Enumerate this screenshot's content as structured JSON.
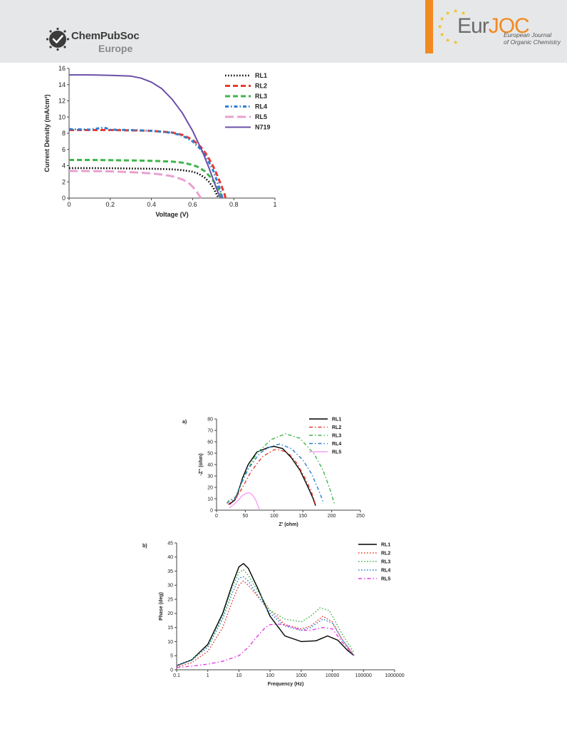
{
  "header": {
    "publisher_name": "ChemPubSoc",
    "publisher_sub": "Europe",
    "journal_prefix": "Eur",
    "journal_suffix": "JOC",
    "journal_full_line1": "European Journal",
    "journal_full_line2": "of Organic Chemistry",
    "icon": "chempubsoc-logo-icon"
  },
  "colors": {
    "header_band": "#e6e7e8",
    "accent_orange": "#f18a21",
    "RL1": "#000000",
    "RL2": "#e83a2f",
    "RL3": "#3fb54a",
    "RL4": "#2f7fd1",
    "RL5": "#e9a0cf",
    "N719": "#6b4fa8"
  },
  "chart_data": [
    {
      "type": "line",
      "title": "",
      "xlabel": "Voltage (V)",
      "ylabel": "Current Density (mA/cm²)",
      "xlim": [
        0,
        1
      ],
      "ylim": [
        0,
        16
      ],
      "xticks": [
        "0",
        "0.2",
        "0.4",
        "0.6",
        "0.8",
        "1"
      ],
      "yticks": [
        "0",
        "2",
        "4",
        "6",
        "8",
        "10",
        "12",
        "14",
        "16"
      ],
      "legend_position": "top-right",
      "grid": false,
      "series": [
        {
          "name": "RL1",
          "style": "dotted",
          "color": "#000000",
          "width": 2.6,
          "x": [
            0,
            0.1,
            0.2,
            0.3,
            0.4,
            0.5,
            0.55,
            0.6,
            0.63,
            0.66,
            0.68,
            0.7,
            0.71,
            0.72,
            0.725
          ],
          "y": [
            3.7,
            3.7,
            3.68,
            3.65,
            3.62,
            3.55,
            3.45,
            3.25,
            3.0,
            2.5,
            2.0,
            1.3,
            0.8,
            0.3,
            0
          ]
        },
        {
          "name": "RL2",
          "style": "dashed",
          "color": "#e83a2f",
          "width": 3,
          "x": [
            0,
            0.1,
            0.2,
            0.3,
            0.4,
            0.5,
            0.55,
            0.6,
            0.64,
            0.67,
            0.7,
            0.72,
            0.74,
            0.755,
            0.76
          ],
          "y": [
            8.4,
            8.4,
            8.4,
            8.35,
            8.3,
            8.1,
            7.8,
            7.2,
            6.3,
            5.3,
            3.9,
            2.8,
            1.5,
            0.5,
            0
          ]
        },
        {
          "name": "RL3",
          "style": "dashed",
          "color": "#3fb54a",
          "width": 3,
          "x": [
            0,
            0.1,
            0.2,
            0.3,
            0.4,
            0.5,
            0.55,
            0.6,
            0.63,
            0.66,
            0.69,
            0.71,
            0.73,
            0.745
          ],
          "y": [
            4.7,
            4.7,
            4.68,
            4.65,
            4.6,
            4.5,
            4.38,
            4.1,
            3.8,
            3.3,
            2.5,
            1.8,
            0.9,
            0
          ]
        },
        {
          "name": "RL4",
          "style": "dashdot",
          "color": "#2f7fd1",
          "width": 3,
          "x": [
            0,
            0.1,
            0.17,
            0.2,
            0.3,
            0.4,
            0.5,
            0.55,
            0.6,
            0.64,
            0.67,
            0.7,
            0.72,
            0.735,
            0.745
          ],
          "y": [
            8.5,
            8.45,
            8.7,
            8.45,
            8.4,
            8.3,
            8.05,
            7.7,
            7.0,
            6.0,
            4.9,
            3.4,
            2.0,
            0.9,
            0
          ]
        },
        {
          "name": "RL5",
          "style": "longdash",
          "color": "#e9a0cf",
          "width": 3,
          "x": [
            0,
            0.1,
            0.2,
            0.3,
            0.4,
            0.45,
            0.5,
            0.55,
            0.58,
            0.6,
            0.62,
            0.64
          ],
          "y": [
            3.35,
            3.33,
            3.3,
            3.2,
            3.05,
            2.9,
            2.7,
            2.3,
            1.9,
            1.4,
            0.8,
            0
          ]
        },
        {
          "name": "N719",
          "style": "solid",
          "color": "#6b4fa8",
          "width": 2,
          "x": [
            0,
            0.1,
            0.2,
            0.3,
            0.35,
            0.4,
            0.45,
            0.5,
            0.55,
            0.6,
            0.65,
            0.68,
            0.7,
            0.72,
            0.735
          ],
          "y": [
            15.2,
            15.2,
            15.15,
            15.05,
            14.8,
            14.3,
            13.5,
            12.2,
            10.5,
            8.3,
            5.6,
            3.7,
            2.3,
            0.9,
            0
          ]
        }
      ]
    },
    {
      "type": "line",
      "panel_label": "a)",
      "title": "",
      "xlabel": "Z' (ohm)",
      "ylabel": "-Z'' (ohm)",
      "xlim": [
        0,
        250
      ],
      "ylim": [
        0,
        80
      ],
      "xticks": [
        "0",
        "50",
        "100",
        "150",
        "200",
        "250"
      ],
      "yticks": [
        "0",
        "10",
        "20",
        "30",
        "40",
        "50",
        "60",
        "70",
        "80"
      ],
      "legend_position": "top-right",
      "grid": false,
      "series": [
        {
          "name": "RL1",
          "style": "solid",
          "color": "#000000",
          "x": [
            22,
            27,
            32,
            37,
            45,
            55,
            70,
            90,
            100,
            115,
            130,
            145,
            160,
            168,
            172
          ],
          "y": [
            5,
            7,
            9,
            15,
            28,
            40,
            51,
            55,
            56,
            54,
            46,
            35,
            19,
            10,
            4
          ]
        },
        {
          "name": "RL2",
          "style": "dashdot",
          "color": "#e83a2f",
          "x": [
            20,
            25,
            30,
            36,
            45,
            60,
            80,
            100,
            110,
            125,
            140,
            155,
            165,
            172
          ],
          "y": [
            5,
            7,
            9,
            12,
            20,
            34,
            47,
            53,
            53,
            50,
            41,
            27,
            16,
            5
          ]
        },
        {
          "name": "RL3",
          "style": "dashdot",
          "color": "#3fb54a",
          "x": [
            18,
            22,
            28,
            32,
            38,
            50,
            70,
            95,
            120,
            145,
            170,
            185,
            198,
            205
          ],
          "y": [
            6,
            9,
            10,
            11,
            18,
            32,
            50,
            62,
            67,
            63,
            49,
            35,
            17,
            5
          ]
        },
        {
          "name": "RL4",
          "style": "dashdot",
          "color": "#2f7fd1",
          "x": [
            18,
            22,
            28,
            34,
            42,
            55,
            75,
            95,
            110,
            130,
            150,
            165,
            178,
            186
          ],
          "y": [
            6,
            8,
            9,
            12,
            22,
            36,
            50,
            56,
            58,
            54,
            44,
            32,
            17,
            6
          ]
        },
        {
          "name": "RL5",
          "style": "solid",
          "color": "#f79ef2",
          "x": [
            22,
            30,
            38,
            45,
            52,
            58,
            63,
            68,
            72,
            75
          ],
          "y": [
            2,
            5,
            9,
            13,
            15,
            15,
            13,
            9,
            4,
            0
          ]
        }
      ]
    },
    {
      "type": "line",
      "panel_label": "b)",
      "title": "",
      "xlabel": "Frequency (Hz)",
      "ylabel": "Phase  (deg)",
      "xscale": "log",
      "xlim": [
        0.1,
        1000000
      ],
      "ylim": [
        0,
        45
      ],
      "xticks": [
        "0.1",
        "1",
        "10",
        "100",
        "1000",
        "10000",
        "100000",
        "1000000"
      ],
      "yticks": [
        "0",
        "5",
        "10",
        "15",
        "20",
        "25",
        "30",
        "35",
        "40",
        "45"
      ],
      "legend_position": "top-right",
      "grid": false,
      "series": [
        {
          "name": "RL1",
          "style": "solid",
          "color": "#000000",
          "x": [
            0.1,
            0.3,
            1,
            3,
            6,
            10,
            14,
            20,
            40,
            100,
            300,
            1000,
            3000,
            7000,
            15000,
            30000,
            50000
          ],
          "y": [
            1.5,
            3.5,
            9,
            20,
            30,
            36.5,
            37.7,
            36,
            29,
            19,
            12,
            10,
            10.3,
            12,
            10.5,
            7,
            5
          ]
        },
        {
          "name": "RL2",
          "style": "dotted",
          "color": "#e83a2f",
          "x": [
            0.1,
            0.3,
            1,
            3,
            6,
            10,
            14,
            20,
            40,
            100,
            300,
            1000,
            2000,
            5000,
            10000,
            20000,
            50000
          ],
          "y": [
            1,
            2.5,
            6.5,
            15,
            24,
            30,
            31.5,
            30,
            26,
            21,
            16,
            14.5,
            15.5,
            19,
            17,
            11,
            5
          ]
        },
        {
          "name": "RL3",
          "style": "dotted",
          "color": "#3fb54a",
          "x": [
            0.1,
            0.3,
            1,
            3,
            6,
            10,
            14,
            20,
            40,
            100,
            300,
            1000,
            2000,
            4000,
            8000,
            20000,
            50000
          ],
          "y": [
            1.5,
            3.5,
            8.5,
            19,
            29,
            34.5,
            35.5,
            33.5,
            28,
            21,
            18,
            17,
            19,
            22,
            21,
            13,
            6
          ]
        },
        {
          "name": "RL4",
          "style": "dotted",
          "color": "#2f7fd1",
          "x": [
            0.1,
            0.3,
            1,
            3,
            6,
            10,
            14,
            20,
            40,
            100,
            300,
            1000,
            2000,
            5000,
            10000,
            20000,
            50000
          ],
          "y": [
            1.5,
            3.3,
            8,
            18,
            27,
            32.5,
            33,
            31.5,
            26.5,
            20,
            15.5,
            14,
            15,
            18,
            16.5,
            11,
            5
          ]
        },
        {
          "name": "RL5",
          "style": "dashdot",
          "color": "#e23de0",
          "x": [
            0.1,
            0.3,
            1,
            3,
            10,
            20,
            40,
            70,
            100,
            200,
            400,
            1000,
            2000,
            5000,
            10000,
            20000,
            50000
          ],
          "y": [
            0.8,
            1.3,
            2,
            3,
            5,
            8,
            12,
            15,
            16,
            16.2,
            15.5,
            14,
            14,
            15,
            14.5,
            10,
            5
          ]
        }
      ]
    }
  ]
}
